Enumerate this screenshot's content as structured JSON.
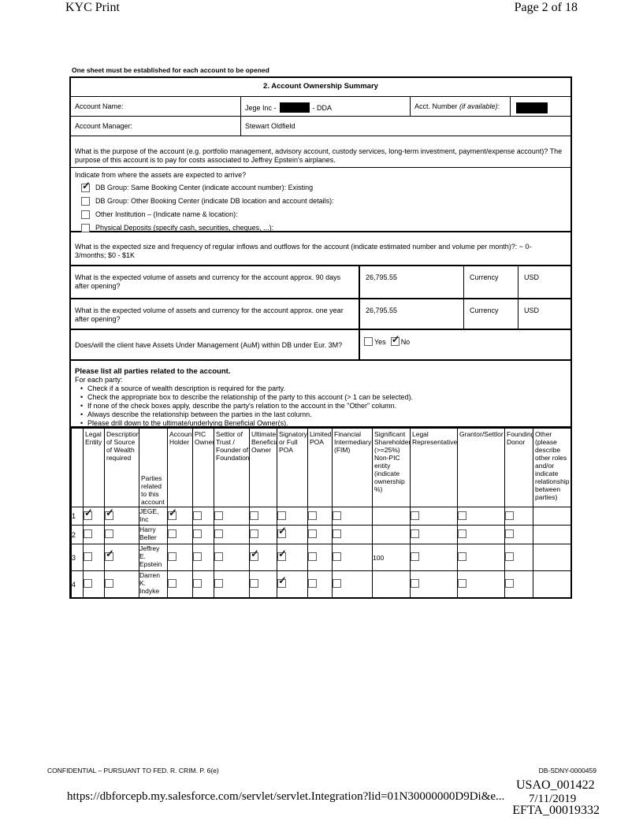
{
  "page_header": {
    "left_title": "KYC Print",
    "right_page": "Page 2 of 18"
  },
  "form": {
    "note": "One sheet must be established for each account to be opened",
    "section_title": "2. Account Ownership Summary",
    "account_name_label": "Account Name:",
    "account_name_prefix": "Jege Inc -",
    "account_name_suffix": "- DDA",
    "acct_number_label": "Acct. Number",
    "acct_number_label_italic": "(if available)",
    "acct_number_label_colon": ":",
    "account_manager_label": "Account Manager:",
    "account_manager_value": "Stewart Oldfield",
    "purpose_text": "What is the purpose of the account (e.g. portfolio management, advisory account, custody services, long-term investment, payment/expense account)?  The purpose of this account is to pay for costs associated to Jeffrey Epstein's airplanes.",
    "assets_arrive": {
      "prompt": "Indicate from where the assets are expected to arrive?",
      "options": [
        {
          "label": "DB Group: Same Booking Center (indicate account number):  Existing",
          "checked": true
        },
        {
          "label": "DB Group: Other Booking Center (indicate DB location and account details):",
          "checked": false
        },
        {
          "label": "Other Institution – (Indicate name & location):",
          "checked": false
        },
        {
          "label": "Physical Deposits (specify cash, securities, cheques, ...):",
          "checked": false
        }
      ]
    },
    "inflows_text": "What is the expected size and frequency of regular inflows and outflows for the account (indicate estimated number and volume per month)?:  ~ 0-3/months; $0 - $1K",
    "volume_90d": {
      "question": "What is the expected volume of assets and currency for the account approx. 90 days after opening?",
      "value": "26,795.55",
      "currency_label": "Currency",
      "currency_value": "USD"
    },
    "volume_1yr": {
      "question": "What is the expected volume of assets and currency for the account approx. one year after opening?",
      "value": "26,795.55",
      "currency_label": "Currency",
      "currency_value": "USD"
    },
    "aum": {
      "question": "Does/will the client have Assets Under Management (AuM) within DB under Eur. 3M?",
      "yes_label": "Yes",
      "no_label": "No",
      "yes_checked": false,
      "no_checked": true
    },
    "parties_intro": {
      "title": "Please list all parties related to the account.",
      "subtitle": "For each party:",
      "bullets": [
        "Check if a source of wealth description is required for the party.",
        "Check the appropriate box to describe the relationship of the party to this account (> 1 can be selected).",
        "If none of the check boxes apply, describe the party's relation to the account in the \"Other\" column.",
        "Always describe the relationship between the parties in the last column.",
        "Please drill down to the ultimate/underlying Beneficial Owner(s)."
      ]
    },
    "parties_table": {
      "headers": [
        "",
        "Legal Entity",
        "Description of Source of Wealth required",
        "Parties related to this account",
        "Account Holder",
        "PIC Owner",
        "Settlor of Trust / Founder of Foundation",
        "Ultimate Beneficial Owner",
        "Signatory or Full POA",
        "Limited POA",
        "Financial Intermediary (FIM)",
        "Significant Shareholder (>=25%) Non-PIC entity (indicate ownership %)",
        "Legal Representative",
        "Grantor/Settlor",
        "Founding Donor",
        "Other (please describe other roles and/or indicate relationship between parties)"
      ],
      "rows": [
        {
          "num": "1",
          "name": "JEGE, Inc",
          "shareholder_pct": "",
          "other": "",
          "checks": {
            "legal_entity": true,
            "source_of_wealth": true,
            "account_holder": true,
            "pic_owner": false,
            "settlor": false,
            "ultimate_beneficial_owner": false,
            "signatory": false,
            "limited_poa": false,
            "financial_intermediary": false,
            "legal_representative": false,
            "grantor_settlor": false,
            "founding_donor": false
          }
        },
        {
          "num": "2",
          "name": "Harry Beller",
          "shareholder_pct": "",
          "other": "",
          "checks": {
            "legal_entity": false,
            "source_of_wealth": false,
            "account_holder": false,
            "pic_owner": false,
            "settlor": false,
            "ultimate_beneficial_owner": false,
            "signatory": true,
            "limited_poa": false,
            "financial_intermediary": false,
            "legal_representative": false,
            "grantor_settlor": false,
            "founding_donor": false
          }
        },
        {
          "num": "3",
          "name": "Jeffrey E. Epstein",
          "shareholder_pct": "100",
          "other": "",
          "checks": {
            "legal_entity": false,
            "source_of_wealth": true,
            "account_holder": false,
            "pic_owner": false,
            "settlor": false,
            "ultimate_beneficial_owner": true,
            "signatory": true,
            "limited_poa": false,
            "financial_intermediary": false,
            "legal_representative": false,
            "grantor_settlor": false,
            "founding_donor": false
          }
        },
        {
          "num": "4",
          "name": "Darren K. Indyke",
          "shareholder_pct": "",
          "other": "",
          "checks": {
            "legal_entity": false,
            "source_of_wealth": false,
            "account_holder": false,
            "pic_owner": false,
            "settlor": false,
            "ultimate_beneficial_owner": false,
            "signatory": true,
            "limited_poa": false,
            "financial_intermediary": false,
            "legal_representative": false,
            "grantor_settlor": false,
            "founding_donor": false
          }
        }
      ]
    }
  },
  "footer": {
    "confidential": "CONFIDENTIAL – PURSUANT TO FED. R. CRIM. P. 6(e)",
    "bates_number": "DB-SDNY-0000459",
    "usao_number": "USAO_001422",
    "url": "https://dbforcepb.my.salesforce.com/servlet/servlet.Integration?lid=01N30000000D9Di&e...",
    "date": "7/11/2019",
    "efta_number": "EFTA_00019332"
  }
}
